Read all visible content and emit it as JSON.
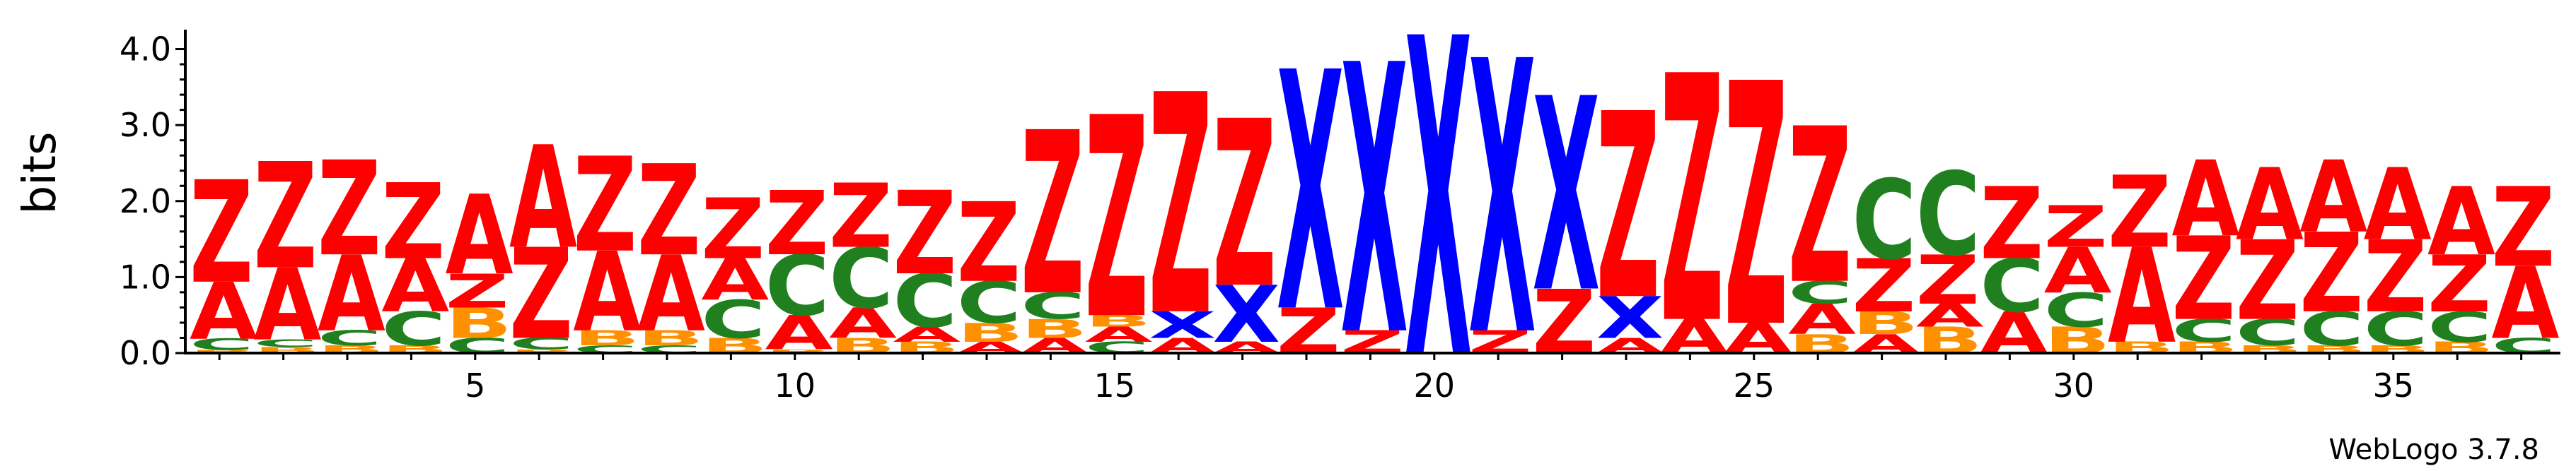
{
  "chart_data": {
    "type": "sequence-logo",
    "ylabel": "bits",
    "ylim": [
      0,
      4.2
    ],
    "y_ticks": [
      "0.0",
      "1.0",
      "2.0",
      "3.0",
      "4.0"
    ],
    "x_ticks": [
      5,
      10,
      15,
      20,
      25,
      30,
      35
    ],
    "footer": "WebLogo 3.7.8",
    "colors": {
      "Z": "#ff0000",
      "A": "#ff0000",
      "X": "#0000ff",
      "C": "#208020",
      "B": "#ff9000"
    },
    "positions": [
      {
        "pos": 1,
        "stack": [
          [
            "B",
            0.04
          ],
          [
            "C",
            0.15
          ],
          [
            "A",
            0.75
          ],
          [
            "Z",
            1.35
          ]
        ]
      },
      {
        "pos": 2,
        "stack": [
          [
            "B",
            0.08
          ],
          [
            "C",
            0.1
          ],
          [
            "A",
            0.95
          ],
          [
            "Z",
            1.4
          ]
        ]
      },
      {
        "pos": 3,
        "stack": [
          [
            "B",
            0.1
          ],
          [
            "C",
            0.2
          ],
          [
            "A",
            1.0
          ],
          [
            "Z",
            1.25
          ]
        ]
      },
      {
        "pos": 4,
        "stack": [
          [
            "B",
            0.1
          ],
          [
            "C",
            0.45
          ],
          [
            "A",
            0.7
          ],
          [
            "Z",
            1.0
          ]
        ]
      },
      {
        "pos": 5,
        "stack": [
          [
            "C",
            0.2
          ],
          [
            "B",
            0.4
          ],
          [
            "Z",
            0.45
          ],
          [
            "A",
            1.05
          ]
        ]
      },
      {
        "pos": 6,
        "stack": [
          [
            "B",
            0.05
          ],
          [
            "C",
            0.15
          ],
          [
            "Z",
            1.2
          ],
          [
            "A",
            1.35
          ]
        ]
      },
      {
        "pos": 7,
        "stack": [
          [
            "C",
            0.1
          ],
          [
            "B",
            0.2
          ],
          [
            "A",
            1.05
          ],
          [
            "Z",
            1.25
          ]
        ]
      },
      {
        "pos": 8,
        "stack": [
          [
            "C",
            0.1
          ],
          [
            "B",
            0.2
          ],
          [
            "A",
            1.0
          ],
          [
            "Z",
            1.2
          ]
        ]
      },
      {
        "pos": 9,
        "stack": [
          [
            "B",
            0.2
          ],
          [
            "C",
            0.5
          ],
          [
            "A",
            0.55
          ],
          [
            "Z",
            0.8
          ]
        ]
      },
      {
        "pos": 10,
        "stack": [
          [
            "B",
            0.05
          ],
          [
            "A",
            0.45
          ],
          [
            "C",
            0.8
          ],
          [
            "Z",
            0.85
          ]
        ]
      },
      {
        "pos": 11,
        "stack": [
          [
            "B",
            0.2
          ],
          [
            "A",
            0.4
          ],
          [
            "C",
            0.8
          ],
          [
            "Z",
            0.85
          ]
        ]
      },
      {
        "pos": 12,
        "stack": [
          [
            "B",
            0.15
          ],
          [
            "A",
            0.2
          ],
          [
            "C",
            0.7
          ],
          [
            "Z",
            1.1
          ]
        ]
      },
      {
        "pos": 13,
        "stack": [
          [
            "A",
            0.15
          ],
          [
            "B",
            0.25
          ],
          [
            "C",
            0.55
          ],
          [
            "Z",
            1.05
          ]
        ]
      },
      {
        "pos": 14,
        "stack": [
          [
            "A",
            0.2
          ],
          [
            "B",
            0.25
          ],
          [
            "C",
            0.35
          ],
          [
            "Z",
            2.15
          ]
        ]
      },
      {
        "pos": 15,
        "stack": [
          [
            "C",
            0.15
          ],
          [
            "A",
            0.2
          ],
          [
            "B",
            0.15
          ],
          [
            "Z",
            2.65
          ]
        ]
      },
      {
        "pos": 16,
        "stack": [
          [
            "A",
            0.2
          ],
          [
            "X",
            0.35
          ],
          [
            "Z",
            2.9
          ]
        ]
      },
      {
        "pos": 17,
        "stack": [
          [
            "A",
            0.15
          ],
          [
            "X",
            0.75
          ],
          [
            "Z",
            2.2
          ]
        ]
      },
      {
        "pos": 18,
        "stack": [
          [
            "Z",
            0.6
          ],
          [
            "X",
            3.15
          ]
        ]
      },
      {
        "pos": 19,
        "stack": [
          [
            "Z",
            0.3
          ],
          [
            "X",
            3.55
          ]
        ]
      },
      {
        "pos": 20,
        "stack": [
          [
            "X",
            4.2
          ]
        ]
      },
      {
        "pos": 21,
        "stack": [
          [
            "Z",
            0.3
          ],
          [
            "X",
            3.6
          ]
        ]
      },
      {
        "pos": 22,
        "stack": [
          [
            "Z",
            0.85
          ],
          [
            "X",
            2.55
          ]
        ]
      },
      {
        "pos": 23,
        "stack": [
          [
            "A",
            0.2
          ],
          [
            "X",
            0.55
          ],
          [
            "Z",
            2.45
          ]
        ]
      },
      {
        "pos": 24,
        "stack": [
          [
            "A",
            0.45
          ],
          [
            "Z",
            3.25
          ]
        ]
      },
      {
        "pos": 25,
        "stack": [
          [
            "A",
            0.4
          ],
          [
            "Z",
            3.2
          ]
        ]
      },
      {
        "pos": 26,
        "stack": [
          [
            "B",
            0.25
          ],
          [
            "A",
            0.4
          ],
          [
            "C",
            0.3
          ],
          [
            "Z",
            2.05
          ]
        ]
      },
      {
        "pos": 27,
        "stack": [
          [
            "A",
            0.25
          ],
          [
            "B",
            0.3
          ],
          [
            "Z",
            0.7
          ],
          [
            "C",
            1.05
          ]
        ]
      },
      {
        "pos": 28,
        "stack": [
          [
            "B",
            0.35
          ],
          [
            "A",
            0.3
          ],
          [
            "Z",
            0.65
          ],
          [
            "C",
            1.1
          ]
        ]
      },
      {
        "pos": 29,
        "stack": [
          [
            "A",
            0.55
          ],
          [
            "C",
            0.7
          ],
          [
            "Z",
            0.95
          ]
        ]
      },
      {
        "pos": 30,
        "stack": [
          [
            "B",
            0.35
          ],
          [
            "C",
            0.45
          ],
          [
            "A",
            0.6
          ],
          [
            "Z",
            0.55
          ]
        ]
      },
      {
        "pos": 31,
        "stack": [
          [
            "B",
            0.15
          ],
          [
            "A",
            1.25
          ],
          [
            "Z",
            0.95
          ]
        ]
      },
      {
        "pos": 32,
        "stack": [
          [
            "B",
            0.15
          ],
          [
            "C",
            0.3
          ],
          [
            "Z",
            1.1
          ],
          [
            "A",
            1.0
          ]
        ]
      },
      {
        "pos": 33,
        "stack": [
          [
            "B",
            0.1
          ],
          [
            "C",
            0.35
          ],
          [
            "Z",
            1.05
          ],
          [
            "A",
            0.95
          ]
        ]
      },
      {
        "pos": 34,
        "stack": [
          [
            "B",
            0.1
          ],
          [
            "C",
            0.45
          ],
          [
            "Z",
            1.05
          ],
          [
            "A",
            0.95
          ]
        ]
      },
      {
        "pos": 35,
        "stack": [
          [
            "B",
            0.1
          ],
          [
            "C",
            0.45
          ],
          [
            "Z",
            0.95
          ],
          [
            "A",
            0.95
          ]
        ]
      },
      {
        "pos": 36,
        "stack": [
          [
            "B",
            0.15
          ],
          [
            "C",
            0.4
          ],
          [
            "Z",
            0.75
          ],
          [
            "A",
            0.9
          ]
        ]
      },
      {
        "pos": 37,
        "stack": [
          [
            "C",
            0.2
          ],
          [
            "A",
            0.95
          ],
          [
            "Z",
            1.05
          ]
        ]
      }
    ]
  }
}
